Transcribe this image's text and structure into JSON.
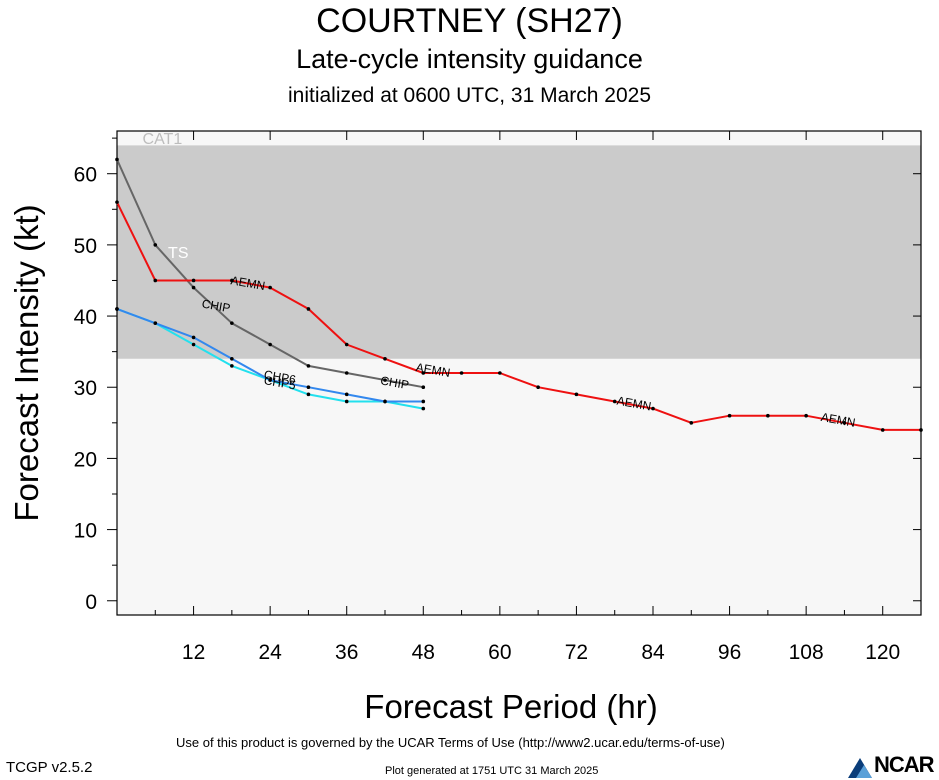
{
  "header": {
    "title": "COURTNEY (SH27)",
    "subtitle": "Late-cycle intensity guidance",
    "initialized": "initialized at 0600 UTC, 31 March 2025"
  },
  "footer": {
    "terms": "Use of this product is governed by the UCAR Terms of Use (http://www2.ucar.edu/terms-of-use)",
    "version": "TCGP v2.5.2",
    "generated": "Plot generated at 1751 UTC   31 March 2025",
    "logo_text": "NCAR"
  },
  "chart_data": {
    "type": "line",
    "xlabel": "Forecast Period (hr)",
    "ylabel": "Forecast Intensity (kt)",
    "xlim": [
      0,
      126
    ],
    "ylim": [
      -2,
      66
    ],
    "xticks": [
      12,
      24,
      36,
      48,
      60,
      72,
      84,
      96,
      108,
      120
    ],
    "yticks": [
      0,
      10,
      20,
      30,
      40,
      50,
      60
    ],
    "bands": [
      {
        "label": "",
        "from": -2,
        "to": 34,
        "color": "#f7f7f7"
      },
      {
        "label": "TS",
        "from": 34,
        "to": 64,
        "color": "#cbcbcb",
        "label_x": 8,
        "label_y": 49,
        "label_color": "#ffffff"
      },
      {
        "label": "CAT1",
        "from": 64,
        "to": 66,
        "color": "#f7f7f7",
        "label_x": 4,
        "label_y": 65,
        "label_color": "#bdbdbd"
      }
    ],
    "series": [
      {
        "name": "AEMN",
        "color": "#ee1111",
        "x": [
          0,
          6,
          12,
          18,
          24,
          30,
          36,
          42,
          48,
          54,
          60,
          66,
          72,
          78,
          84,
          90,
          96,
          102,
          108,
          114,
          120,
          126
        ],
        "y": [
          56,
          45,
          45,
          45,
          44,
          41,
          36,
          34,
          32,
          32,
          32,
          30,
          29,
          28,
          27,
          25,
          26,
          26,
          26,
          25,
          24,
          24
        ],
        "labels": [
          {
            "text": "AEMN",
            "x": 20.5,
            "y": 44.5
          },
          {
            "text": "AEMN",
            "x": 49.5,
            "y": 32.3
          },
          {
            "text": "AEMN",
            "x": 81,
            "y": 27.6
          },
          {
            "text": "AEMN",
            "x": 113,
            "y": 25.3
          }
        ]
      },
      {
        "name": "CHIP",
        "color": "#666666",
        "x": [
          0,
          6,
          12,
          18,
          24,
          30,
          36,
          42,
          48
        ],
        "y": [
          62,
          50,
          44,
          39,
          36,
          33,
          32,
          31,
          30
        ],
        "labels": [
          {
            "text": "CHIP",
            "x": 15.5,
            "y": 41.3
          },
          {
            "text": "CHIP",
            "x": 43.5,
            "y": 30.5
          }
        ]
      },
      {
        "name": "CHP6",
        "color": "#3388ee",
        "x": [
          0,
          6,
          12,
          18,
          24,
          30,
          36,
          42,
          48
        ],
        "y": [
          41,
          39,
          37,
          34,
          31,
          30,
          29,
          28,
          28
        ],
        "labels": [
          {
            "text": "CHP6",
            "x": 25.5,
            "y": 31.3
          }
        ]
      },
      {
        "name": "CHP5",
        "color": "#22e0ee",
        "x": [
          0,
          6,
          12,
          18,
          24,
          30,
          36,
          42,
          48
        ],
        "y": [
          41,
          39,
          36,
          33,
          31,
          29,
          28,
          28,
          27
        ],
        "labels": [
          {
            "text": "CHP5",
            "x": 25.5,
            "y": 30.5
          }
        ]
      }
    ]
  }
}
